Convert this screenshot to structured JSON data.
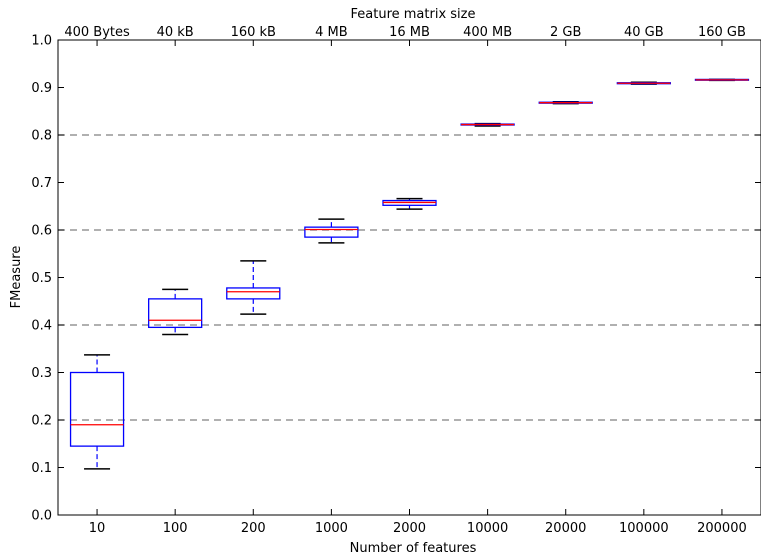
{
  "chart_data": {
    "type": "box",
    "title": "",
    "xlabel": "Number of features",
    "ylabel": "FMeasure",
    "top_xlabel": "Feature matrix size",
    "categories": [
      "10",
      "100",
      "200",
      "1000",
      "2000",
      "10000",
      "20000",
      "100000",
      "200000"
    ],
    "top_categories": [
      "400 Bytes",
      "40 kB",
      "160 kB",
      "4 MB",
      "16 MB",
      "400 MB",
      "2 GB",
      "40 GB",
      "160 GB"
    ],
    "ylim": [
      0.0,
      1.0
    ],
    "yticks": [
      "0.0",
      "0.1",
      "0.2",
      "0.3",
      "0.4",
      "0.5",
      "0.6",
      "0.7",
      "0.8",
      "0.9",
      "1.0"
    ],
    "grid": "horizontal dashed at 0.2, 0.4, 0.6, 0.8",
    "boxes": [
      {
        "category": "10",
        "whislo": 0.097,
        "q1": 0.145,
        "med": 0.19,
        "q3": 0.3,
        "whishi": 0.337
      },
      {
        "category": "100",
        "whislo": 0.38,
        "q1": 0.395,
        "med": 0.41,
        "q3": 0.455,
        "whishi": 0.475
      },
      {
        "category": "200",
        "whislo": 0.423,
        "q1": 0.455,
        "med": 0.47,
        "q3": 0.478,
        "whishi": 0.535
      },
      {
        "category": "1000",
        "whislo": 0.573,
        "q1": 0.585,
        "med": 0.601,
        "q3": 0.606,
        "whishi": 0.623
      },
      {
        "category": "2000",
        "whislo": 0.644,
        "q1": 0.652,
        "med": 0.658,
        "q3": 0.662,
        "whishi": 0.666
      },
      {
        "category": "10000",
        "whislo": 0.819,
        "q1": 0.821,
        "med": 0.822,
        "q3": 0.823,
        "whishi": 0.824
      },
      {
        "category": "20000",
        "whislo": 0.866,
        "q1": 0.867,
        "med": 0.868,
        "q3": 0.869,
        "whishi": 0.87
      },
      {
        "category": "100000",
        "whislo": 0.907,
        "q1": 0.908,
        "med": 0.909,
        "q3": 0.91,
        "whishi": 0.911
      },
      {
        "category": "200000",
        "whislo": 0.915,
        "q1": 0.916,
        "med": 0.916,
        "q3": 0.917,
        "whishi": 0.917
      }
    ],
    "colors": {
      "box": "#0000ff",
      "median": "#ff0000",
      "whisker_cap": "#000000",
      "grid": "#808080"
    }
  }
}
